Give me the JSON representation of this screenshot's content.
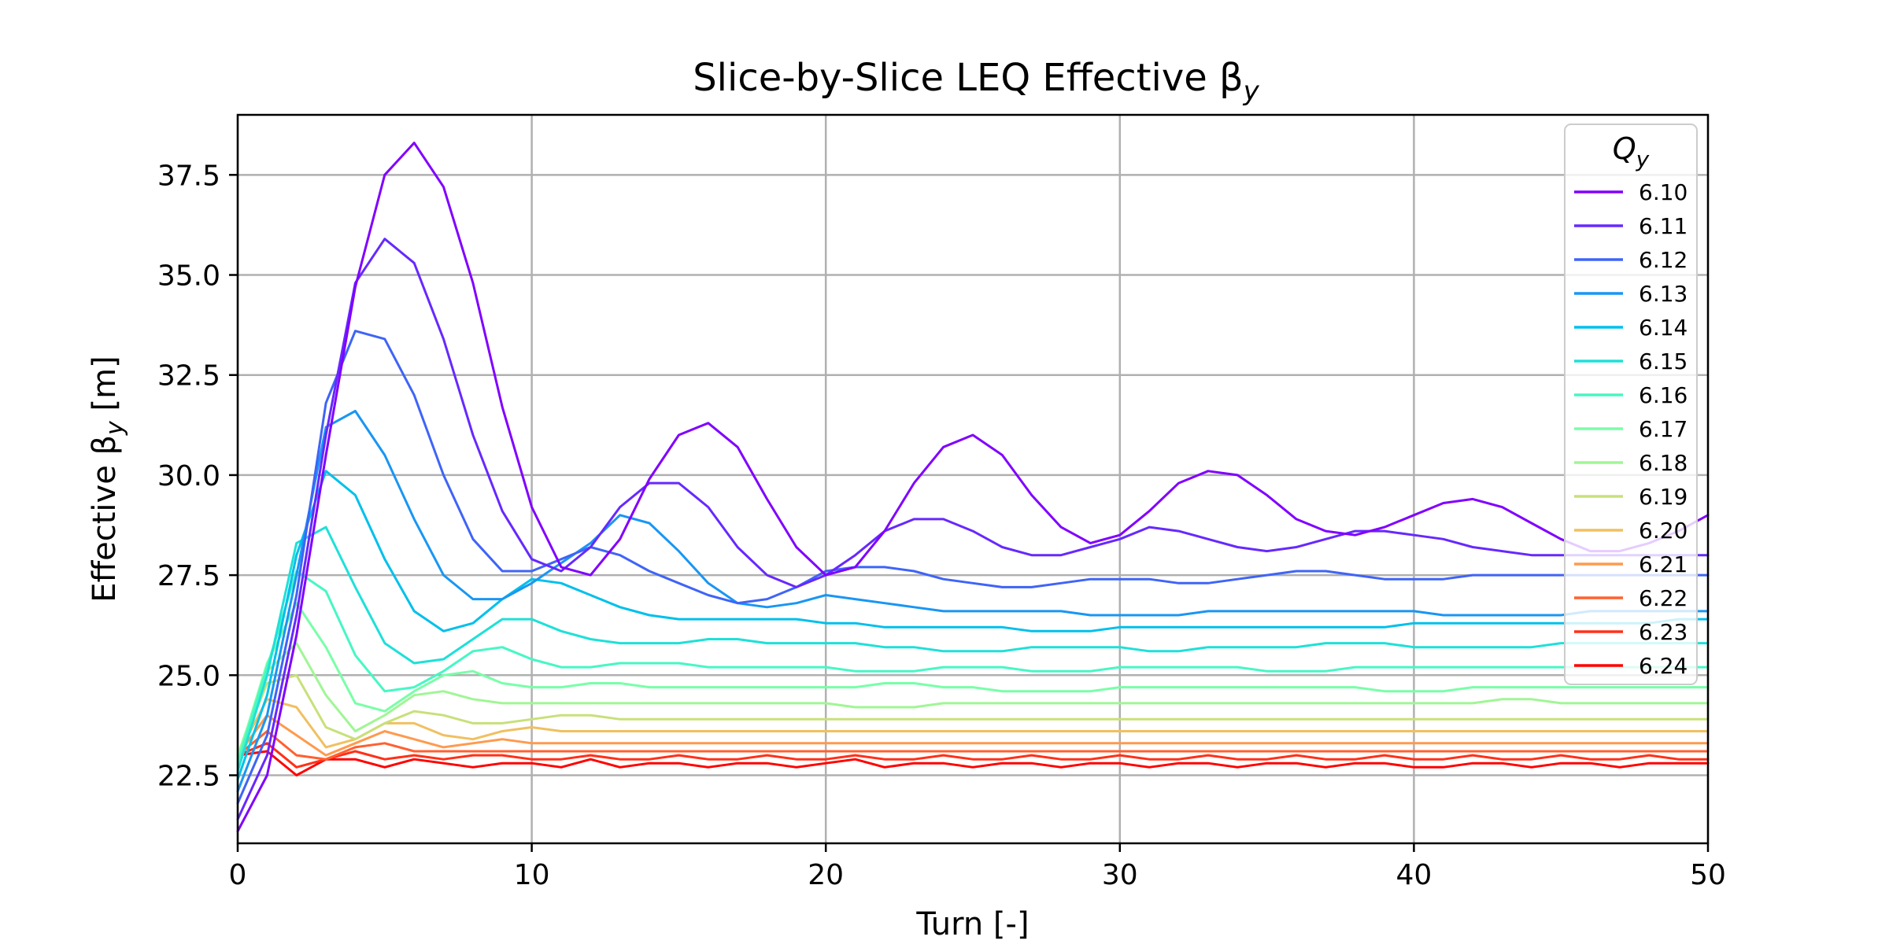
{
  "chart_data": {
    "type": "line",
    "title": "Slice-by-Slice LEQ Effective β",
    "title_sub": "y",
    "xlabel": "Turn [-]",
    "ylabel": "Effective β",
    "ylabel_sub": "y",
    "ylabel_unit": " [m]",
    "xlim": [
      0,
      50
    ],
    "ylim": [
      20.8,
      39.0
    ],
    "xticks": [
      0,
      10,
      20,
      30,
      40,
      50
    ],
    "xtick_labels": [
      "0",
      "10",
      "20",
      "30",
      "40",
      "50"
    ],
    "yticks": [
      22.5,
      25.0,
      27.5,
      30.0,
      32.5,
      35.0,
      37.5
    ],
    "ytick_labels": [
      "22.5",
      "25.0",
      "27.5",
      "30.0",
      "32.5",
      "35.0",
      "37.5"
    ],
    "grid": true,
    "legend": {
      "title": "Q",
      "title_sub": "y",
      "position": "top-right"
    },
    "x": [
      0,
      1,
      2,
      3,
      4,
      5,
      6,
      7,
      8,
      9,
      10,
      11,
      12,
      13,
      14,
      15,
      16,
      17,
      18,
      19,
      20,
      21,
      22,
      23,
      24,
      25,
      26,
      27,
      28,
      29,
      30,
      31,
      32,
      33,
      34,
      35,
      36,
      37,
      38,
      39,
      40,
      41,
      42,
      43,
      44,
      45,
      46,
      47,
      48,
      49,
      50
    ],
    "series": [
      {
        "name": "6.10",
        "color": "#8000ff",
        "values": [
          21.1,
          22.5,
          26.0,
          30.5,
          34.7,
          37.5,
          38.3,
          37.2,
          34.8,
          31.7,
          29.2,
          27.7,
          27.5,
          28.4,
          29.9,
          31.0,
          31.3,
          30.7,
          29.4,
          28.2,
          27.5,
          27.7,
          28.6,
          29.8,
          30.7,
          31.0,
          30.5,
          29.5,
          28.7,
          28.3,
          28.5,
          29.1,
          29.8,
          30.1,
          30.0,
          29.5,
          28.9,
          28.6,
          28.5,
          28.7,
          29.0,
          29.3,
          29.4,
          29.2,
          28.8,
          28.4,
          28.1,
          28.1,
          28.3,
          28.6,
          29.0
        ]
      },
      {
        "name": "6.11",
        "color": "#6629fe",
        "values": [
          21.4,
          23.0,
          26.5,
          31.0,
          34.8,
          35.9,
          35.3,
          33.4,
          31.0,
          29.1,
          27.9,
          27.6,
          28.2,
          29.2,
          29.8,
          29.8,
          29.2,
          28.2,
          27.5,
          27.2,
          27.5,
          28.0,
          28.6,
          28.9,
          28.9,
          28.6,
          28.2,
          28.0,
          28.0,
          28.2,
          28.4,
          28.7,
          28.6,
          28.4,
          28.2,
          28.1,
          28.2,
          28.4,
          28.6,
          28.6,
          28.5,
          28.4,
          28.2,
          28.1,
          28.0,
          28.0,
          28.0,
          28.0,
          28.0,
          28.0,
          28.0
        ]
      },
      {
        "name": "6.12",
        "color": "#3f64f7",
        "values": [
          21.8,
          23.5,
          27.0,
          31.8,
          33.6,
          33.4,
          32.0,
          30.0,
          28.4,
          27.6,
          27.6,
          27.9,
          28.2,
          28.0,
          27.6,
          27.3,
          27.0,
          26.8,
          26.9,
          27.2,
          27.6,
          27.7,
          27.7,
          27.6,
          27.4,
          27.3,
          27.2,
          27.2,
          27.3,
          27.4,
          27.4,
          27.4,
          27.3,
          27.3,
          27.4,
          27.5,
          27.6,
          27.6,
          27.5,
          27.4,
          27.4,
          27.4,
          27.5,
          27.5,
          27.5,
          27.5,
          27.5,
          27.5,
          27.5,
          27.5,
          27.5
        ]
      },
      {
        "name": "6.13",
        "color": "#1996f3",
        "values": [
          22.1,
          24.0,
          27.5,
          31.2,
          31.6,
          30.5,
          28.9,
          27.5,
          26.9,
          26.9,
          27.3,
          27.8,
          28.3,
          29.0,
          28.8,
          28.1,
          27.3,
          26.8,
          26.7,
          26.8,
          27.0,
          26.9,
          26.8,
          26.7,
          26.6,
          26.6,
          26.6,
          26.6,
          26.6,
          26.5,
          26.5,
          26.5,
          26.5,
          26.6,
          26.6,
          26.6,
          26.6,
          26.6,
          26.6,
          26.6,
          26.6,
          26.5,
          26.5,
          26.5,
          26.5,
          26.5,
          26.6,
          26.6,
          26.6,
          26.6,
          26.6
        ]
      },
      {
        "name": "6.14",
        "color": "#00c0eb",
        "values": [
          22.4,
          24.5,
          28.0,
          30.1,
          29.5,
          27.9,
          26.6,
          26.1,
          26.3,
          26.9,
          27.4,
          27.3,
          27.0,
          26.7,
          26.5,
          26.4,
          26.4,
          26.4,
          26.4,
          26.4,
          26.3,
          26.3,
          26.2,
          26.2,
          26.2,
          26.2,
          26.2,
          26.1,
          26.1,
          26.1,
          26.2,
          26.2,
          26.2,
          26.2,
          26.2,
          26.2,
          26.2,
          26.2,
          26.2,
          26.2,
          26.3,
          26.3,
          26.3,
          26.3,
          26.3,
          26.3,
          26.3,
          26.3,
          26.3,
          26.4,
          26.4
        ]
      },
      {
        "name": "6.15",
        "color": "#1ee0d8",
        "values": [
          22.6,
          25.0,
          28.3,
          28.7,
          27.2,
          25.8,
          25.3,
          25.4,
          25.9,
          26.4,
          26.4,
          26.1,
          25.9,
          25.8,
          25.8,
          25.8,
          25.9,
          25.9,
          25.8,
          25.8,
          25.8,
          25.8,
          25.7,
          25.7,
          25.6,
          25.6,
          25.6,
          25.7,
          25.7,
          25.7,
          25.7,
          25.6,
          25.6,
          25.7,
          25.7,
          25.7,
          25.7,
          25.8,
          25.8,
          25.8,
          25.7,
          25.7,
          25.7,
          25.7,
          25.7,
          25.8,
          25.8,
          25.8,
          25.8,
          25.8,
          25.8
        ]
      },
      {
        "name": "6.16",
        "color": "#46f7c4",
        "values": [
          22.8,
          25.2,
          27.6,
          27.1,
          25.5,
          24.6,
          24.7,
          25.1,
          25.6,
          25.7,
          25.4,
          25.2,
          25.2,
          25.3,
          25.3,
          25.3,
          25.2,
          25.2,
          25.2,
          25.2,
          25.2,
          25.1,
          25.1,
          25.1,
          25.2,
          25.2,
          25.2,
          25.1,
          25.1,
          25.1,
          25.2,
          25.2,
          25.2,
          25.2,
          25.2,
          25.1,
          25.1,
          25.1,
          25.2,
          25.2,
          25.2,
          25.2,
          25.2,
          25.2,
          25.2,
          25.2,
          25.2,
          25.2,
          25.2,
          25.2,
          25.2
        ]
      },
      {
        "name": "6.17",
        "color": "#78ffa8",
        "values": [
          22.9,
          25.3,
          26.8,
          25.7,
          24.3,
          24.1,
          24.6,
          25.0,
          25.1,
          24.8,
          24.7,
          24.7,
          24.8,
          24.8,
          24.7,
          24.7,
          24.7,
          24.7,
          24.7,
          24.7,
          24.7,
          24.7,
          24.8,
          24.8,
          24.7,
          24.7,
          24.6,
          24.6,
          24.6,
          24.6,
          24.7,
          24.7,
          24.7,
          24.7,
          24.7,
          24.7,
          24.7,
          24.7,
          24.7,
          24.6,
          24.6,
          24.6,
          24.7,
          24.7,
          24.7,
          24.7,
          24.7,
          24.7,
          24.7,
          24.7,
          24.7
        ]
      },
      {
        "name": "6.18",
        "color": "#a0f695",
        "values": [
          23.0,
          25.1,
          25.8,
          24.5,
          23.6,
          24.0,
          24.5,
          24.6,
          24.4,
          24.3,
          24.3,
          24.3,
          24.3,
          24.3,
          24.3,
          24.3,
          24.3,
          24.3,
          24.3,
          24.3,
          24.3,
          24.2,
          24.2,
          24.2,
          24.3,
          24.3,
          24.3,
          24.3,
          24.3,
          24.3,
          24.3,
          24.3,
          24.3,
          24.3,
          24.3,
          24.3,
          24.3,
          24.3,
          24.3,
          24.3,
          24.3,
          24.3,
          24.3,
          24.4,
          24.4,
          24.3,
          24.3,
          24.3,
          24.3,
          24.3,
          24.3
        ]
      },
      {
        "name": "6.19",
        "color": "#c8e07a",
        "values": [
          23.0,
          24.8,
          25.0,
          23.7,
          23.4,
          23.8,
          24.1,
          24.0,
          23.8,
          23.8,
          23.9,
          24.0,
          24.0,
          23.9,
          23.9,
          23.9,
          23.9,
          23.9,
          23.9,
          23.9,
          23.9,
          23.9,
          23.9,
          23.9,
          23.9,
          23.9,
          23.9,
          23.9,
          23.9,
          23.9,
          23.9,
          23.9,
          23.9,
          23.9,
          23.9,
          23.9,
          23.9,
          23.9,
          23.9,
          23.9,
          23.9,
          23.9,
          23.9,
          23.9,
          23.9,
          23.9,
          23.9,
          23.9,
          23.9,
          23.9,
          23.9
        ]
      },
      {
        "name": "6.20",
        "color": "#f0c060",
        "values": [
          23.0,
          24.4,
          24.2,
          23.2,
          23.4,
          23.8,
          23.8,
          23.5,
          23.4,
          23.6,
          23.7,
          23.6,
          23.6,
          23.6,
          23.6,
          23.6,
          23.6,
          23.6,
          23.6,
          23.6,
          23.6,
          23.6,
          23.6,
          23.6,
          23.6,
          23.6,
          23.6,
          23.6,
          23.6,
          23.6,
          23.6,
          23.6,
          23.6,
          23.6,
          23.6,
          23.6,
          23.6,
          23.6,
          23.6,
          23.6,
          23.6,
          23.6,
          23.6,
          23.6,
          23.6,
          23.6,
          23.6,
          23.6,
          23.6,
          23.6,
          23.6
        ]
      },
      {
        "name": "6.21",
        "color": "#ff9a4e",
        "values": [
          23.0,
          24.0,
          23.5,
          23.0,
          23.3,
          23.6,
          23.4,
          23.2,
          23.3,
          23.4,
          23.3,
          23.3,
          23.3,
          23.3,
          23.3,
          23.3,
          23.3,
          23.3,
          23.3,
          23.3,
          23.3,
          23.3,
          23.3,
          23.3,
          23.3,
          23.3,
          23.3,
          23.3,
          23.3,
          23.3,
          23.3,
          23.3,
          23.3,
          23.3,
          23.3,
          23.3,
          23.3,
          23.3,
          23.3,
          23.3,
          23.3,
          23.3,
          23.3,
          23.3,
          23.3,
          23.3,
          23.3,
          23.3,
          23.3,
          23.3,
          23.3
        ]
      },
      {
        "name": "6.22",
        "color": "#ff6030",
        "values": [
          23.0,
          23.6,
          23.0,
          22.9,
          23.2,
          23.3,
          23.1,
          23.1,
          23.1,
          23.1,
          23.1,
          23.1,
          23.1,
          23.1,
          23.1,
          23.1,
          23.1,
          23.1,
          23.1,
          23.1,
          23.1,
          23.1,
          23.1,
          23.1,
          23.1,
          23.1,
          23.1,
          23.1,
          23.1,
          23.1,
          23.1,
          23.1,
          23.1,
          23.1,
          23.1,
          23.1,
          23.1,
          23.1,
          23.1,
          23.1,
          23.1,
          23.1,
          23.1,
          23.1,
          23.1,
          23.1,
          23.1,
          23.1,
          23.1,
          23.1,
          23.1
        ]
      },
      {
        "name": "6.23",
        "color": "#ff3018",
        "values": [
          23.0,
          23.3,
          22.7,
          22.9,
          23.1,
          22.9,
          23.0,
          22.9,
          23.0,
          23.0,
          22.9,
          22.9,
          23.0,
          22.9,
          22.9,
          23.0,
          22.9,
          22.9,
          23.0,
          22.9,
          22.9,
          23.0,
          22.9,
          22.9,
          23.0,
          22.9,
          22.9,
          23.0,
          22.9,
          22.9,
          23.0,
          22.9,
          22.9,
          23.0,
          22.9,
          22.9,
          23.0,
          22.9,
          22.9,
          23.0,
          22.9,
          22.9,
          23.0,
          22.9,
          22.9,
          23.0,
          22.9,
          22.9,
          23.0,
          22.9,
          22.9
        ]
      },
      {
        "name": "6.24",
        "color": "#ff0000",
        "values": [
          23.0,
          23.1,
          22.5,
          22.9,
          22.9,
          22.7,
          22.9,
          22.8,
          22.7,
          22.8,
          22.8,
          22.7,
          22.9,
          22.7,
          22.8,
          22.8,
          22.7,
          22.8,
          22.8,
          22.7,
          22.8,
          22.9,
          22.7,
          22.8,
          22.8,
          22.7,
          22.8,
          22.8,
          22.7,
          22.8,
          22.8,
          22.7,
          22.8,
          22.8,
          22.7,
          22.8,
          22.8,
          22.7,
          22.8,
          22.8,
          22.7,
          22.7,
          22.8,
          22.8,
          22.7,
          22.8,
          22.8,
          22.7,
          22.8,
          22.8,
          22.8
        ]
      }
    ]
  }
}
